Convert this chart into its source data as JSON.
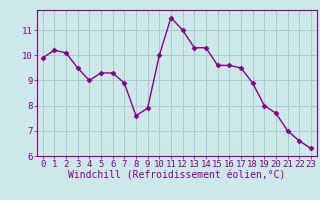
{
  "hours": [
    0,
    1,
    2,
    3,
    4,
    5,
    6,
    7,
    8,
    9,
    10,
    11,
    12,
    13,
    14,
    15,
    16,
    17,
    18,
    19,
    20,
    21,
    22,
    23
  ],
  "values": [
    9.9,
    10.2,
    10.1,
    9.5,
    9.0,
    9.3,
    9.3,
    8.9,
    7.6,
    7.9,
    10.0,
    11.5,
    11.0,
    10.3,
    10.3,
    9.6,
    9.6,
    9.5,
    8.9,
    8.0,
    7.7,
    7.0,
    6.6,
    6.3
  ],
  "line_color": "#880088",
  "marker": "D",
  "marker_size": 2.5,
  "bg_color": "#cce8e8",
  "grid_color": "#aacccc",
  "xlabel": "Windchill (Refroidissement éolien,°C)",
  "ylim": [
    6,
    11.8
  ],
  "xlim": [
    -0.5,
    23.5
  ],
  "yticks": [
    6,
    7,
    8,
    9,
    10,
    11
  ],
  "xticks": [
    0,
    1,
    2,
    3,
    4,
    5,
    6,
    7,
    8,
    9,
    10,
    11,
    12,
    13,
    14,
    15,
    16,
    17,
    18,
    19,
    20,
    21,
    22,
    23
  ],
  "tick_label_fontsize": 6.5,
  "xlabel_fontsize": 7.0,
  "line_width": 1.0,
  "spine_color": "#880088",
  "xlabel_color": "#880088"
}
